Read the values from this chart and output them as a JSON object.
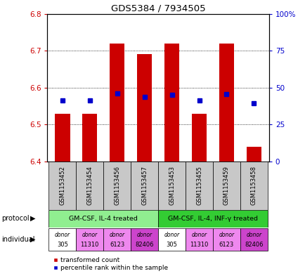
{
  "title": "GDS5384 / 7934505",
  "samples": [
    "GSM1153452",
    "GSM1153454",
    "GSM1153456",
    "GSM1153457",
    "GSM1153453",
    "GSM1153455",
    "GSM1153459",
    "GSM1153458"
  ],
  "bar_values": [
    6.53,
    6.53,
    6.72,
    6.69,
    6.72,
    6.53,
    6.72,
    6.44
  ],
  "bar_base": 6.4,
  "percentile_values": [
    6.565,
    6.565,
    6.585,
    6.575,
    6.58,
    6.565,
    6.582,
    6.558
  ],
  "ylim_left": [
    6.4,
    6.8
  ],
  "ylim_right": [
    0,
    100
  ],
  "yticks_left": [
    6.4,
    6.5,
    6.6,
    6.7,
    6.8
  ],
  "yticks_right": [
    0,
    25,
    50,
    75,
    100
  ],
  "ytick_labels_right": [
    "0",
    "25",
    "50",
    "75",
    "100%"
  ],
  "bar_color": "#cc0000",
  "percentile_color": "#0000cc",
  "protocol_groups": [
    {
      "label": "GM-CSF, IL-4 treated",
      "start": 0,
      "end": 4,
      "color": "#90ee90"
    },
    {
      "label": "GM-CSF, IL-4, INF-γ treated",
      "start": 4,
      "end": 8,
      "color": "#33cc33"
    }
  ],
  "indiv_colors": [
    "#ffffff",
    "#ee88ee",
    "#ee88ee",
    "#cc44cc",
    "#ffffff",
    "#ee88ee",
    "#ee88ee",
    "#cc44cc"
  ],
  "indiv_labels_top": [
    "donor",
    "donor",
    "donor",
    "donor",
    "donor",
    "donor",
    "donor",
    "donor"
  ],
  "indiv_labels_bot": [
    "305",
    "11310",
    "6123",
    "82406",
    "305",
    "11310",
    "6123",
    "82406"
  ],
  "xlabel_color": "#cc0000",
  "right_axis_color": "#0000cc",
  "sample_bg_color": "#c8c8c8",
  "legend_red_label": "transformed count",
  "legend_blue_label": "percentile rank within the sample"
}
